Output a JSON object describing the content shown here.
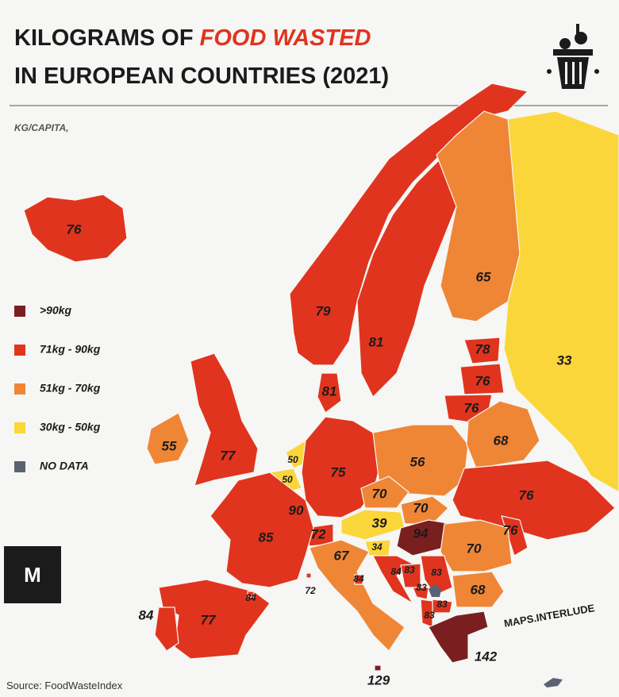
{
  "header": {
    "title_line1_prefix": "KILOGRAMS OF ",
    "title_highlight": "FOOD WASTED",
    "title_line2": "IN EUROPEAN COUNTRIES (2021)",
    "subtitle": "KG/CAPITA,"
  },
  "legend": {
    "items": [
      {
        "label": ">90kg",
        "color": "#7a1f1f"
      },
      {
        "label": "71kg - 90kg",
        "color": "#e0341e"
      },
      {
        "label": "51kg - 70kg",
        "color": "#ef8636"
      },
      {
        "label": "30kg - 50kg",
        "color": "#fbd63a"
      },
      {
        "label": "NO DATA",
        "color": "#5b6372"
      }
    ]
  },
  "regions": [
    {
      "value": 76,
      "color": "#e0341e"
    },
    {
      "value": 79,
      "color": "#e0341e"
    },
    {
      "value": 81,
      "color": "#e0341e"
    },
    {
      "value": 65,
      "color": "#ef8636"
    },
    {
      "value": 33,
      "color": "#fbd63a"
    },
    {
      "value": 78,
      "color": "#e0341e"
    },
    {
      "value": 76,
      "color": "#e0341e"
    },
    {
      "value": 76,
      "color": "#e0341e"
    },
    {
      "value": 81,
      "color": "#e0341e"
    },
    {
      "value": 55,
      "color": "#ef8636"
    },
    {
      "value": 77,
      "color": "#e0341e"
    },
    {
      "value": 50,
      "color": "#fbd63a"
    },
    {
      "value": 50,
      "color": "#fbd63a"
    },
    {
      "value": 75,
      "color": "#e0341e"
    },
    {
      "value": 56,
      "color": "#ef8636"
    },
    {
      "value": 68,
      "color": "#ef8636"
    },
    {
      "value": 76,
      "color": "#e0341e"
    },
    {
      "value": 70,
      "color": "#ef8636"
    },
    {
      "value": 70,
      "color": "#ef8636"
    },
    {
      "value": 39,
      "color": "#fbd63a"
    },
    {
      "value": 94,
      "color": "#7a1f1f"
    },
    {
      "value": 90,
      "color": "#e0341e"
    },
    {
      "value": 72,
      "color": "#e0341e"
    },
    {
      "value": 85,
      "color": "#e0341e"
    },
    {
      "value": 34,
      "color": "#fbd63a"
    },
    {
      "value": 76,
      "color": "#e0341e"
    },
    {
      "value": 70,
      "color": "#ef8636"
    },
    {
      "value": 67,
      "color": "#ef8636"
    },
    {
      "value": 84,
      "color": "#e0341e"
    },
    {
      "value": 83,
      "color": "#e0341e"
    },
    {
      "value": 83,
      "color": "#e0341e"
    },
    {
      "value": 84,
      "color": "#e0341e"
    },
    {
      "value": 83,
      "color": "#e0341e"
    },
    {
      "value": 68,
      "color": "#ef8636"
    },
    {
      "value": 72,
      "color": "#e0341e"
    },
    {
      "value": 77,
      "color": "#e0341e"
    },
    {
      "value": 84,
      "color": "#e0341e"
    },
    {
      "value": 84,
      "color": "#e0341e"
    },
    {
      "value": 83,
      "color": "#e0341e"
    },
    {
      "value": 83,
      "color": "#e0341e"
    },
    {
      "value": 142,
      "color": "#7a1f1f"
    },
    {
      "value": 129,
      "color": "#7a1f1f"
    }
  ],
  "credit": "MAPS.INTERLUDE",
  "logo": "M",
  "source": "Source: FoodWasteIndex"
}
